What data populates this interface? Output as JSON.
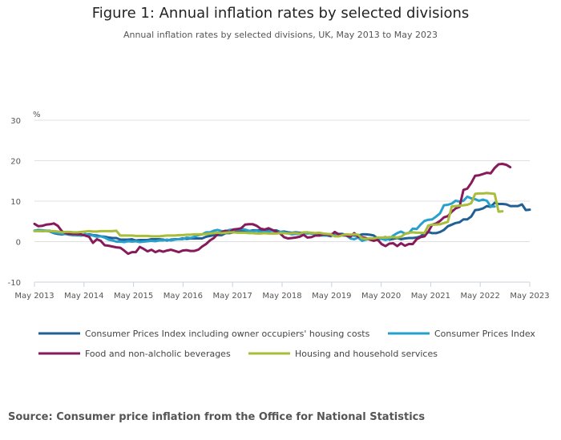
{
  "title": "Figure 1: Annual inflation rates by selected divisions",
  "subtitle": "Annual inflation rates by selected divisions, UK, May 2013 to May 2023",
  "source": "Source: Consumer price inflation from the Office for National Statistics",
  "chart_data": {
    "type": "line",
    "title": "Figure 1: Annual inflation rates by selected divisions",
    "subtitle": "Annual inflation rates by selected divisions, UK, May 2013 to May 2023",
    "xlabel": "",
    "ylabel": "%",
    "ylim": [
      -10,
      30
    ],
    "yticks": [
      "30",
      "20",
      "10",
      "0",
      "-10"
    ],
    "ytick_values": [
      30,
      20,
      10,
      0,
      -10
    ],
    "xticks": [
      "May 2013",
      "May 2014",
      "May 2015",
      "May 2016",
      "May 2017",
      "May 2018",
      "May 2019",
      "May 2020",
      "May 2021",
      "May 2022",
      "May 2023"
    ],
    "x_start": "May 2013",
    "x_end": "May 2023",
    "frequency": "monthly",
    "grid": true,
    "legend_position": "bottom",
    "series": [
      {
        "name": "Consumer Prices Index including owner occupiers' housing costs",
        "color": "#206095",
        "values": [
          2.7,
          2.8,
          2.6,
          2.7,
          2.5,
          2.1,
          1.9,
          1.8,
          1.9,
          1.7,
          1.6,
          1.6,
          1.5,
          1.7,
          1.8,
          1.6,
          1.5,
          1.3,
          1.2,
          1.0,
          0.9,
          0.9,
          0.5,
          0.5,
          0.5,
          0.6,
          0.3,
          0.4,
          0.4,
          0.4,
          0.6,
          0.6,
          0.6,
          0.5,
          0.3,
          0.5,
          0.6,
          0.6,
          0.8,
          0.7,
          0.8,
          0.8,
          0.8,
          0.8,
          1.2,
          1.4,
          1.6,
          1.6,
          1.6,
          2.1,
          2.1,
          2.3,
          2.6,
          2.6,
          2.7,
          2.6,
          2.8,
          2.8,
          2.8,
          2.8,
          2.7,
          2.7,
          2.8,
          2.4,
          2.5,
          2.3,
          2.2,
          2.3,
          2.2,
          2.2,
          2.3,
          2.0,
          2.0,
          1.9,
          1.7,
          1.8,
          1.8,
          2.0,
          1.9,
          1.9,
          1.6,
          1.7,
          1.5,
          1.5,
          1.8,
          1.8,
          1.7,
          1.5,
          0.8,
          0.9,
          1.1,
          0.5,
          0.7,
          0.9,
          0.6,
          0.8,
          0.9,
          0.9,
          1.0,
          1.3,
          2.1,
          2.4,
          2.1,
          2.1,
          2.4,
          2.9,
          3.8,
          4.2,
          4.6,
          4.8,
          5.5,
          5.5,
          6.2,
          7.8,
          7.9,
          8.2,
          8.8,
          8.6,
          9.6,
          9.3,
          9.3,
          9.2,
          8.8,
          8.8,
          8.8,
          9.2,
          7.8,
          7.9
        ],
        "note": "approximate monthly values read from chart; last values May 2023 ~7.9"
      },
      {
        "name": "Consumer Prices Index",
        "color": "#27a0cc",
        "values": [
          2.7,
          2.9,
          2.8,
          2.7,
          2.7,
          2.2,
          2.1,
          2.0,
          1.9,
          1.7,
          1.6,
          1.8,
          1.5,
          1.9,
          1.6,
          1.5,
          1.2,
          1.3,
          1.0,
          0.5,
          0.3,
          0.0,
          0.0,
          -0.1,
          0.1,
          0.0,
          0.1,
          -0.1,
          0.0,
          0.1,
          0.2,
          0.1,
          0.3,
          0.3,
          0.5,
          0.3,
          0.5,
          0.6,
          0.6,
          1.0,
          0.9,
          1.2,
          1.6,
          1.8,
          2.3,
          2.3,
          2.7,
          2.9,
          2.6,
          2.6,
          2.9,
          3.0,
          3.0,
          3.1,
          3.0,
          2.7,
          2.5,
          2.7,
          2.4,
          2.4,
          2.5,
          2.7,
          2.4,
          2.4,
          2.3,
          2.1,
          1.8,
          1.9,
          1.9,
          2.1,
          2.0,
          2.1,
          1.7,
          1.5,
          1.5,
          1.5,
          1.3,
          1.8,
          1.7,
          1.5,
          1.5,
          0.8,
          0.6,
          1.0,
          0.2,
          0.5,
          0.7,
          0.3,
          0.6,
          0.7,
          0.4,
          0.7,
          1.5,
          2.1,
          2.5,
          2.0,
          2.1,
          3.2,
          3.1,
          4.2,
          5.1,
          5.4,
          5.5,
          6.2,
          7.0,
          9.0,
          9.1,
          9.4,
          10.1,
          9.9,
          10.1,
          11.1,
          10.7,
          10.5,
          10.1,
          10.4,
          10.1,
          8.7,
          8.7
        ],
        "note": "approximate monthly values read from chart; May 2023 ~8.7"
      },
      {
        "name": "Food and non-alcholic beverages",
        "color": "#871a5b",
        "values": [
          4.4,
          3.8,
          3.9,
          4.2,
          4.3,
          4.5,
          3.9,
          2.6,
          2.1,
          1.9,
          1.9,
          1.9,
          1.8,
          1.5,
          1.2,
          -0.3,
          0.6,
          0.2,
          -0.9,
          -1.0,
          -1.2,
          -1.4,
          -1.5,
          -2.2,
          -3.0,
          -2.6,
          -2.6,
          -1.3,
          -1.8,
          -2.4,
          -2.0,
          -2.6,
          -2.2,
          -2.5,
          -2.2,
          -2.0,
          -2.3,
          -2.6,
          -2.2,
          -2.1,
          -2.3,
          -2.3,
          -2.0,
          -1.2,
          -0.6,
          0.3,
          0.9,
          1.9,
          2.3,
          2.7,
          2.4,
          3.0,
          3.1,
          3.3,
          4.2,
          4.3,
          4.3,
          3.9,
          3.2,
          3.0,
          3.3,
          2.9,
          2.5,
          2.0,
          1.1,
          0.8,
          0.9,
          1.0,
          1.2,
          1.7,
          1.0,
          1.1,
          1.5,
          1.5,
          1.8,
          1.7,
          1.5,
          2.4,
          1.8,
          1.6,
          1.5,
          1.2,
          2.1,
          1.2,
          1.1,
          0.9,
          0.5,
          0.2,
          0.5,
          -0.6,
          -1.1,
          -0.5,
          -0.4,
          -1.1,
          -0.4,
          -1.0,
          -0.6,
          -0.6,
          0.6,
          1.1,
          1.3,
          2.5,
          4.2,
          4.5,
          5.1,
          6.0,
          6.3,
          7.4,
          8.2,
          8.6,
          12.8,
          13.1,
          14.5,
          16.3,
          16.4,
          16.7,
          17.0,
          16.9,
          18.2,
          19.1,
          19.2,
          19.0,
          18.4
        ],
        "note": "approximate monthly values read from chart; peak ~19.2 early 2023"
      },
      {
        "name": "Housing and household services",
        "color": "#a8bd3a",
        "values": [
          2.6,
          2.6,
          2.6,
          2.6,
          2.6,
          2.6,
          2.5,
          2.3,
          2.4,
          2.4,
          2.3,
          2.3,
          2.4,
          2.5,
          2.6,
          2.5,
          2.5,
          2.6,
          2.6,
          2.6,
          2.6,
          2.7,
          1.5,
          1.5,
          1.5,
          1.5,
          1.4,
          1.4,
          1.4,
          1.4,
          1.3,
          1.3,
          1.3,
          1.4,
          1.5,
          1.5,
          1.5,
          1.6,
          1.6,
          1.7,
          1.7,
          1.8,
          1.8,
          1.8,
          1.9,
          2.0,
          2.1,
          2.2,
          2.1,
          2.2,
          2.3,
          2.3,
          2.2,
          2.2,
          2.2,
          2.1,
          2.1,
          2.0,
          2.0,
          2.1,
          2.0,
          2.0,
          2.0,
          2.1,
          2.1,
          2.0,
          2.1,
          2.1,
          2.0,
          2.3,
          2.3,
          2.2,
          2.1,
          2.2,
          2.0,
          1.9,
          1.8,
          1.3,
          1.3,
          1.6,
          1.8,
          1.7,
          1.8,
          1.7,
          0.8,
          0.7,
          0.8,
          0.8,
          1.0,
          1.0,
          1.0,
          1.1,
          1.1,
          1.0,
          1.2,
          1.9,
          2.2,
          2.3,
          2.2,
          2.2,
          2.1,
          4.0,
          4.2,
          4.2,
          4.3,
          4.6,
          4.9,
          8.7,
          8.8,
          8.9,
          9.0,
          9.1,
          9.5,
          11.8,
          11.9,
          11.9,
          12.0,
          11.9,
          11.8,
          7.4,
          7.5
        ],
        "note": "approximate monthly values read from chart; ~7.4 at May 2023"
      }
    ]
  }
}
